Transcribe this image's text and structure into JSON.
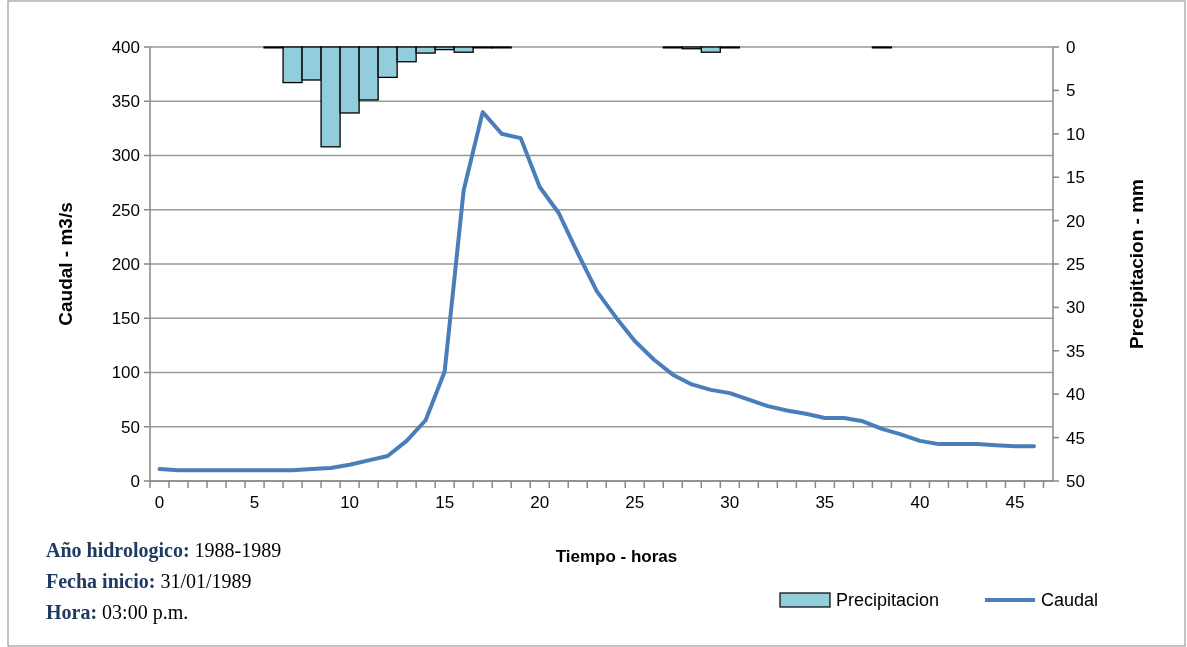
{
  "chart_data": {
    "type": "bar",
    "xlabel": "Tiempo - horas",
    "ylabel": "Caudal - m3/s",
    "y2label": "Precipitacion - mm",
    "categories": [
      "0",
      null,
      null,
      null,
      null,
      "5",
      null,
      null,
      null,
      null,
      "10",
      null,
      null,
      null,
      null,
      "15",
      null,
      null,
      null,
      null,
      "20",
      null,
      null,
      null,
      null,
      "25",
      null,
      null,
      null,
      null,
      "30",
      null,
      null,
      null,
      null,
      "35",
      null,
      null,
      null,
      null,
      "40",
      null,
      null,
      null,
      null,
      "45",
      null
    ],
    "series": [
      {
        "name": "Precipitacion",
        "axis": "y2",
        "color": "#92cddc",
        "values": [
          0,
          0,
          0,
          0,
          0,
          0,
          0.1,
          4.1,
          3.8,
          11.5,
          7.6,
          6.1,
          3.5,
          1.7,
          0.7,
          0.3,
          0.6,
          0.1,
          0.1,
          0,
          0,
          0,
          0,
          0,
          0,
          0,
          0,
          0.1,
          0.2,
          0.6,
          0.1,
          0,
          0,
          0,
          0,
          0,
          0,
          0,
          0.1,
          0,
          0,
          0,
          0,
          0,
          0,
          0,
          0
        ]
      },
      {
        "name": "Caudal",
        "type": "line",
        "color": "#4a7ebb",
        "values": [
          11,
          10,
          10,
          10,
          10,
          10,
          10,
          10,
          11,
          12,
          15,
          19,
          23,
          37,
          56,
          101,
          268,
          340,
          320,
          316,
          271,
          247,
          210,
          175,
          151,
          129,
          112,
          98,
          89,
          84,
          81,
          75,
          69,
          65,
          62,
          58,
          58,
          55,
          48,
          43,
          37,
          34,
          34,
          34,
          33,
          32,
          32
        ]
      }
    ],
    "ylim": [
      0,
      400
    ],
    "yticks": [
      0,
      50,
      100,
      150,
      200,
      250,
      300,
      350,
      400
    ],
    "y2lim": [
      50,
      0
    ],
    "y2ticks": [
      0,
      5,
      10,
      15,
      20,
      25,
      30,
      35,
      40,
      45,
      50
    ],
    "grid": "y",
    "legend": "bottom right",
    "line_style": "solid",
    "marker": "none",
    "annotations": [
      "Año hidrologico: 1988-1989",
      "Fecha inicio: 31/01/1989",
      "Hora: 03:00 p.m."
    ]
  }
}
